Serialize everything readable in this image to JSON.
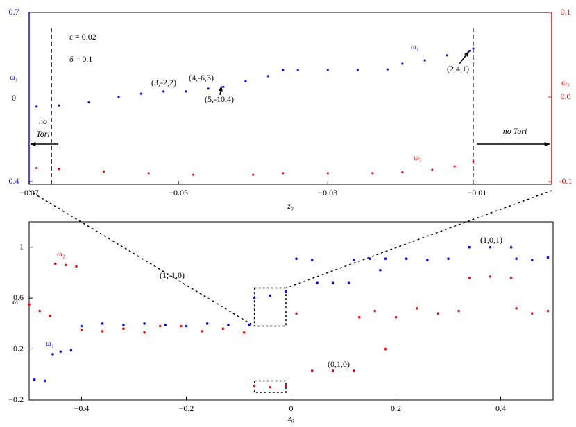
{
  "chart_data": [
    {
      "type": "scatter",
      "x_label": "z₀",
      "y_label_left": "ω₁",
      "y_label_right": "ω₂",
      "y_mid_text": "0",
      "xlim": [
        -0.07,
        0
      ],
      "xticks": [
        {
          "value": -0.07,
          "label": "−0.07"
        },
        {
          "value": -0.05,
          "label": "−0.05"
        },
        {
          "value": -0.03,
          "label": "−0.03"
        },
        {
          "value": -0.01,
          "label": "−0.01"
        }
      ],
      "ylim": [
        0.4,
        0.7
      ],
      "yticks": [
        0.7,
        0.4
      ],
      "y2lim": [
        -0.1,
        0.1
      ],
      "y2ticks": [
        0.1,
        {
          "value": 0,
          "label": "0.0"
        },
        {
          "value": -0.1,
          "label": "-0.1"
        }
      ],
      "no_tori_bounds": [
        -0.067,
        -0.0105
      ],
      "params": [
        "ε = 0.02",
        "δ = 0.1"
      ],
      "no_tori_left": [
        "no",
        "Tori"
      ],
      "no_tori_right": "no Tori",
      "annotations": [
        "(3,-2,2)",
        "(4,-6,3)",
        "(5,-10,4)",
        "(2,4,1)"
      ],
      "series": [
        {
          "name": "ω₁",
          "color": "#1010e0",
          "x": [
            -0.069,
            -0.066,
            -0.062,
            -0.058,
            -0.055,
            -0.052,
            -0.049,
            -0.046,
            -0.044,
            -0.041,
            -0.038,
            -0.036,
            -0.034,
            -0.03,
            -0.026,
            -0.022,
            -0.02,
            -0.017,
            -0.014,
            -0.011,
            -0.0105
          ],
          "values": [
            0.533,
            0.535,
            0.541,
            0.55,
            0.556,
            0.56,
            0.56,
            0.565,
            0.568,
            0.578,
            0.587,
            0.598,
            0.598,
            0.598,
            0.598,
            0.599,
            0.609,
            0.615,
            0.624,
            0.632,
            0.636
          ]
        },
        {
          "name": "ω₂",
          "color": "#e01010",
          "axis": "y2",
          "x": [
            -0.069,
            -0.066,
            -0.06,
            -0.054,
            -0.048,
            -0.04,
            -0.036,
            -0.03,
            -0.024,
            -0.02,
            -0.016,
            -0.013,
            -0.0105
          ],
          "values": [
            -0.084,
            -0.085,
            -0.088,
            -0.09,
            -0.092,
            -0.092,
            -0.09,
            -0.09,
            -0.09,
            -0.089,
            -0.086,
            -0.082,
            -0.076
          ]
        }
      ]
    },
    {
      "type": "scatter",
      "x_label": "z₀",
      "y_label": "ω",
      "xlim": [
        -0.5,
        0.5
      ],
      "xticks": [
        {
          "value": -0.4,
          "label": "−0.4"
        },
        {
          "value": -0.2,
          "label": "−0.2"
        },
        0,
        0.2,
        0.4
      ],
      "ylim": [
        -0.2,
        1.2
      ],
      "yticks": [
        1,
        0.6,
        0.2,
        {
          "value": -0.2,
          "label": "−0.2"
        }
      ],
      "zoom_box": {
        "xlim": [
          -0.07,
          -0.01
        ],
        "ylim": [
          0.38,
          0.68
        ],
        "ylim2": [
          -0.14,
          -0.05
        ]
      },
      "annotations": [
        "(1,-1,0)",
        "(0,1,0)",
        "(1,0,1)"
      ],
      "series": [
        {
          "name": "ω₁",
          "color": "#1010e0",
          "x": [
            -0.49,
            -0.47,
            -0.455,
            -0.44,
            -0.42,
            -0.4,
            -0.36,
            -0.32,
            -0.28,
            -0.24,
            -0.2,
            -0.16,
            -0.12,
            -0.08,
            -0.07,
            -0.04,
            -0.01,
            0.01,
            0.04,
            0.05,
            0.08,
            0.11,
            0.12,
            0.15,
            0.17,
            0.18,
            0.22,
            0.26,
            0.3,
            0.34,
            0.38,
            0.42,
            0.43,
            0.46,
            0.49
          ],
          "values": [
            -0.04,
            -0.05,
            0.16,
            0.18,
            0.19,
            0.38,
            0.4,
            0.39,
            0.4,
            0.39,
            0.38,
            0.4,
            0.39,
            0.39,
            0.6,
            0.62,
            0.65,
            0.91,
            0.9,
            0.72,
            0.72,
            0.72,
            0.9,
            0.91,
            0.82,
            0.91,
            0.91,
            0.9,
            0.91,
            1.0,
            1.0,
            1.0,
            0.91,
            0.9,
            0.92
          ]
        },
        {
          "name": "ω₂",
          "color": "#e01010",
          "x": [
            -0.5,
            -0.48,
            -0.46,
            -0.45,
            -0.43,
            -0.41,
            -0.4,
            -0.36,
            -0.32,
            -0.28,
            -0.25,
            -0.21,
            -0.17,
            -0.13,
            -0.09,
            -0.07,
            -0.04,
            -0.01,
            0.01,
            0.04,
            0.08,
            0.12,
            0.13,
            0.16,
            0.18,
            0.2,
            0.24,
            0.28,
            0.32,
            0.34,
            0.38,
            0.42,
            0.43,
            0.46,
            0.49
          ],
          "values": [
            0.55,
            0.5,
            0.46,
            0.87,
            0.86,
            0.85,
            0.35,
            0.34,
            0.36,
            0.33,
            0.38,
            0.38,
            0.34,
            0.36,
            0.33,
            -0.09,
            -0.1,
            -0.09,
            0.48,
            0.03,
            0.03,
            0.03,
            0.45,
            0.5,
            0.2,
            0.45,
            0.52,
            0.48,
            0.5,
            0.76,
            0.77,
            0.76,
            0.52,
            0.48,
            0.5
          ]
        }
      ]
    }
  ]
}
